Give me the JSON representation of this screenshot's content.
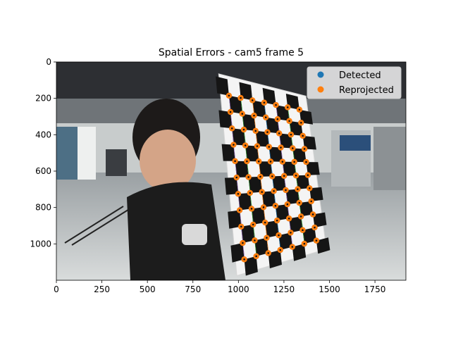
{
  "chart_data": {
    "type": "scatter",
    "title": "Spatial Errors - cam5 frame 5",
    "xlabel": "",
    "ylabel": "",
    "xlim": [
      0,
      1920
    ],
    "ylim": [
      1200,
      0
    ],
    "x_ticks": [
      0,
      250,
      500,
      750,
      1000,
      1250,
      1500,
      1750
    ],
    "y_ticks": [
      0,
      200,
      400,
      600,
      800,
      1000
    ],
    "grid": false,
    "legend_position": "top-right",
    "background": "camera frame photo: person holding a black-and-white checkerboard calibration target in a lab",
    "board_grid": {
      "cols": 6,
      "rows": 10
    },
    "board_corners": {
      "top_left": [
        948,
        185
      ],
      "top_right": [
        1335,
        262
      ],
      "bottom_left": [
        1032,
        1085
      ],
      "bottom_right": [
        1428,
        982
      ]
    },
    "series": [
      {
        "name": "Detected",
        "color": "#1f77b4"
      },
      {
        "name": "Reprojected",
        "color": "#ff7f0e"
      }
    ]
  },
  "colors": {
    "axes": "#000000",
    "error_lines": [
      "#9467bd",
      "#2ca02c",
      "#ff7f0e",
      "#1f77b4"
    ]
  }
}
